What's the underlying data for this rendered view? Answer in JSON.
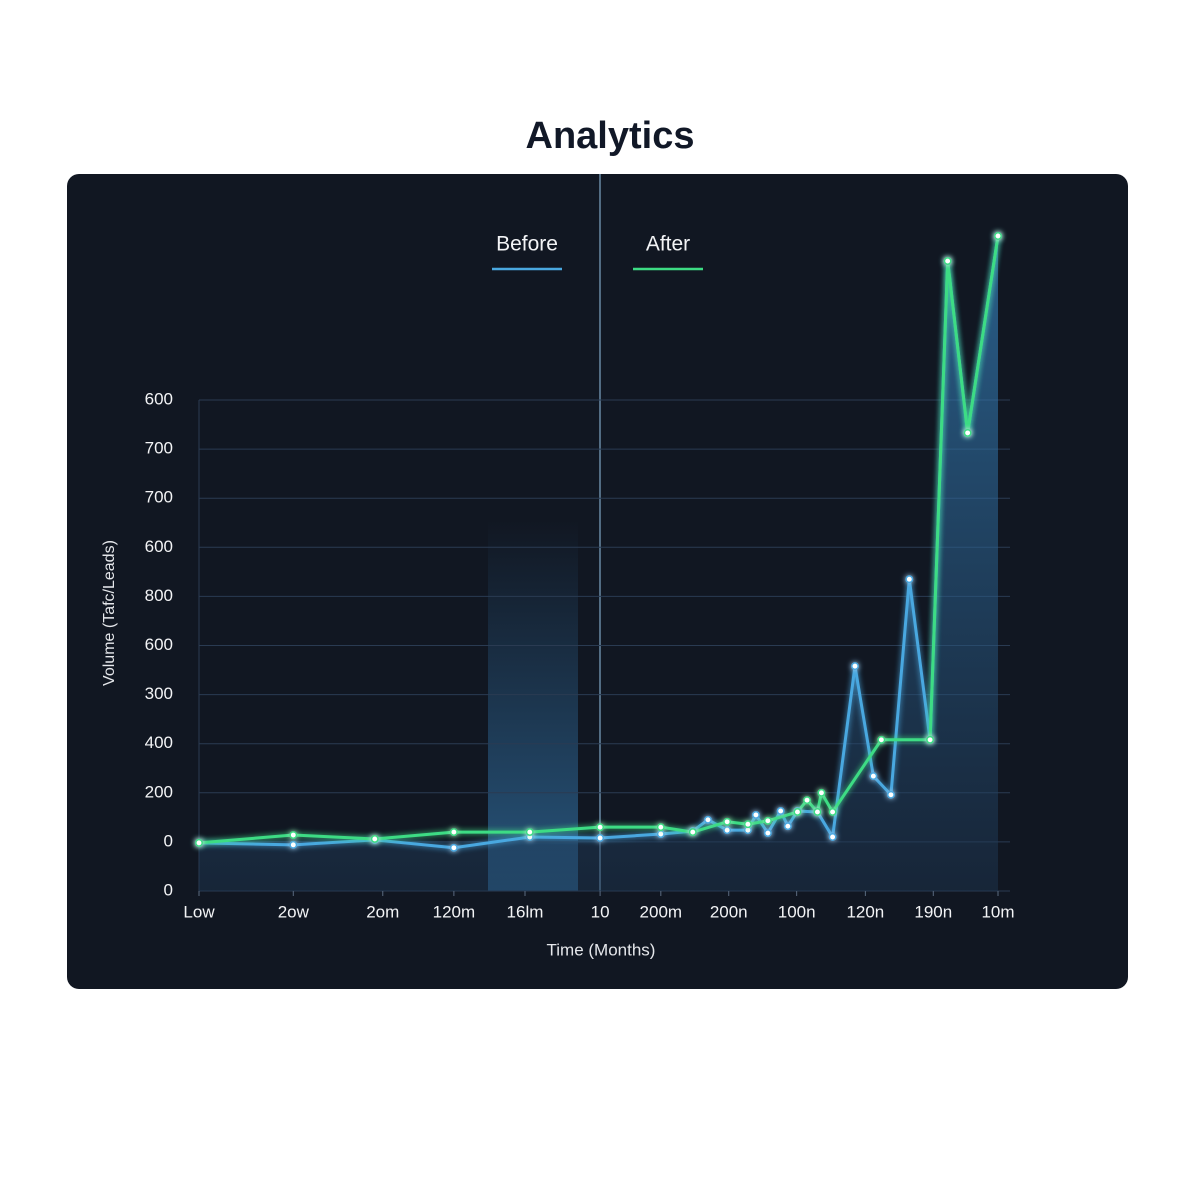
{
  "chart_data": {
    "type": "line",
    "title": "Analytics",
    "xlabel": "Time (Months)",
    "ylabel": "Volume (Tafc/Leads)",
    "xlim": [
      0,
      100
    ],
    "xticks": [
      {
        "value": 0,
        "label": "Low"
      },
      {
        "value": 11.8,
        "label": "2ow"
      },
      {
        "value": 23.0,
        "label": "2om"
      },
      {
        "value": 31.9,
        "label": "120m"
      },
      {
        "value": 40.8,
        "label": "16lm"
      },
      {
        "value": 50.2,
        "label": "10"
      },
      {
        "value": 57.8,
        "label": "200m"
      },
      {
        "value": 66.3,
        "label": "200n"
      },
      {
        "value": 74.8,
        "label": "100n"
      },
      {
        "value": 83.4,
        "label": "120n"
      },
      {
        "value": 91.9,
        "label": "190n"
      },
      {
        "value": 100,
        "label": "10m"
      }
    ],
    "ylim": [
      0,
      1000
    ],
    "yticks": [
      {
        "value": 0,
        "label": "0"
      },
      {
        "value": 100,
        "label": "0"
      },
      200,
      {
        "value": 300,
        "label": "400"
      },
      {
        "value": 400,
        "label": "300"
      },
      {
        "value": 500,
        "label": "600"
      },
      {
        "value": 600,
        "label": "800"
      },
      {
        "value": 700,
        "label": "600"
      },
      {
        "value": 800,
        "label": "700"
      },
      {
        "value": 900,
        "label": "700"
      },
      {
        "value": 1000,
        "label": "600"
      }
    ],
    "grid": true,
    "series": [
      {
        "name": "Before",
        "color": "#4aa8e0",
        "x": [
          0,
          11.8,
          22.0,
          31.9,
          41.4,
          50.2,
          57.8,
          61.8,
          63.7,
          66.1,
          68.7,
          69.7,
          71.2,
          72.8,
          73.7,
          74.9,
          77.4,
          79.3,
          82.1,
          84.4,
          86.6,
          88.9,
          91.5,
          93.7,
          96.2,
          100
        ],
        "values": [
          98,
          94,
          104,
          88,
          110,
          108,
          116,
          122,
          145,
          124,
          124,
          155,
          118,
          163,
          132,
          163,
          161,
          110,
          458,
          234,
          196,
          635,
          308,
          1283,
          933,
          1334
        ]
      },
      {
        "name": "After",
        "color": "#3ddc84",
        "x": [
          0,
          11.8,
          22.0,
          31.9,
          41.4,
          50.2,
          57.8,
          61.8,
          66.1,
          68.7,
          71.2,
          74.9,
          76.1,
          77.4,
          77.9,
          79.3,
          85.4,
          91.5,
          93.7,
          96.2,
          100
        ],
        "values": [
          98,
          114,
          106,
          120,
          120,
          130,
          130,
          120,
          141,
          136,
          143,
          161,
          185,
          161,
          200,
          161,
          308,
          308,
          1283,
          933,
          1334
        ]
      }
    ]
  }
}
